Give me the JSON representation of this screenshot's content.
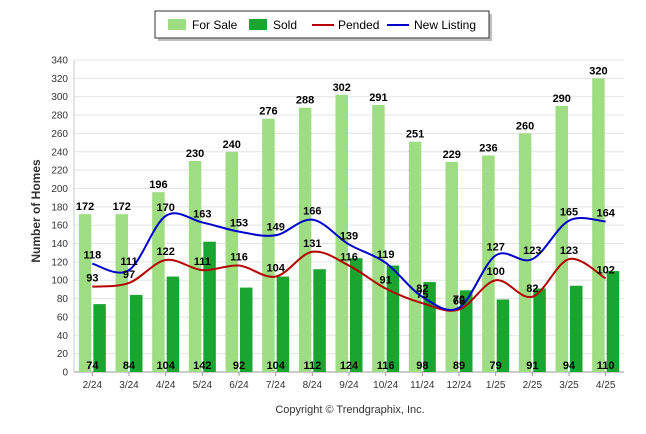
{
  "chart_data": {
    "type": "bar",
    "ylabel": "Number of Homes",
    "ylim": [
      0,
      340
    ],
    "yticks": [
      0,
      20,
      40,
      60,
      80,
      100,
      120,
      140,
      160,
      180,
      200,
      220,
      240,
      260,
      280,
      300,
      320,
      340
    ],
    "grid": true,
    "legend_position": "top",
    "categories": [
      "2/24",
      "3/24",
      "4/24",
      "5/24",
      "6/24",
      "7/24",
      "8/24",
      "9/24",
      "10/24",
      "11/24",
      "12/24",
      "1/25",
      "2/25",
      "3/25",
      "4/25"
    ],
    "series": [
      {
        "name": "For Sale",
        "kind": "bar",
        "color": "#9edd82",
        "values": [
          172,
          172,
          196,
          230,
          240,
          276,
          288,
          302,
          291,
          251,
          229,
          236,
          260,
          290,
          320
        ]
      },
      {
        "name": "Sold",
        "kind": "bar",
        "color": "#1aa531",
        "values": [
          74,
          84,
          104,
          142,
          92,
          104,
          112,
          124,
          116,
          98,
          89,
          79,
          91,
          94,
          110
        ]
      },
      {
        "name": "Pended",
        "kind": "line",
        "color": "#b50000",
        "values": [
          93,
          97,
          122,
          111,
          116,
          104,
          131,
          116,
          91,
          75,
          68,
          100,
          82,
          123,
          102
        ]
      },
      {
        "name": "New Listing",
        "kind": "line",
        "color": "#0000cc",
        "values": [
          118,
          111,
          170,
          163,
          153,
          149,
          166,
          139,
          119,
          82,
          70,
          127,
          123,
          165,
          164
        ]
      }
    ],
    "credit": "Copyright © Trendgraphix, Inc."
  }
}
